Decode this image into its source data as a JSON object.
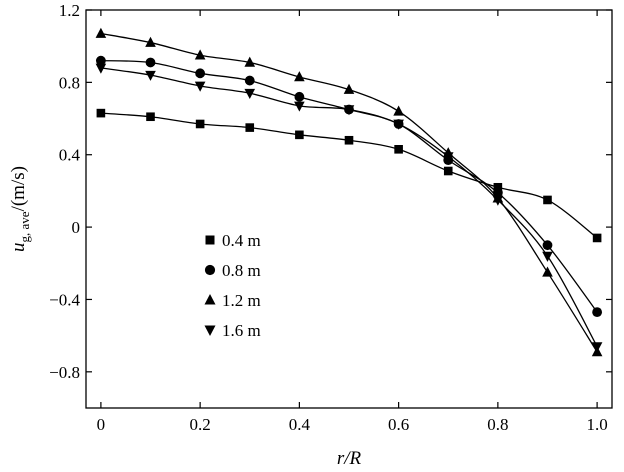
{
  "chart_data": {
    "type": "line",
    "xlabel": "r/R",
    "ylabel": {
      "var": "u",
      "sub": "g, ave",
      "unit": "/(m/s)"
    },
    "xlim": [
      -0.03,
      1.03
    ],
    "ylim": [
      -1.0,
      1.2
    ],
    "xticks": [
      0,
      0.2,
      0.4,
      0.6,
      0.8,
      1.0
    ],
    "xtick_labels": [
      "0",
      "0.2",
      "0.4",
      "0.6",
      "0.8",
      "1.0"
    ],
    "yticks": [
      -0.8,
      -0.4,
      0,
      0.4,
      0.8,
      1.2
    ],
    "ytick_labels": [
      "−0.8",
      "−0.4",
      "0",
      "0.4",
      "0.8",
      "1.2"
    ],
    "grid": false,
    "legend_position": "lower-left",
    "x": [
      0,
      0.1,
      0.2,
      0.3,
      0.4,
      0.5,
      0.6,
      0.7,
      0.8,
      0.9,
      1.0
    ],
    "series": [
      {
        "name": "0.4 m",
        "marker": "square",
        "values": [
          0.63,
          0.61,
          0.57,
          0.55,
          0.51,
          0.48,
          0.43,
          0.31,
          0.22,
          0.15,
          -0.06
        ]
      },
      {
        "name": "0.8 m",
        "marker": "circle",
        "values": [
          0.92,
          0.91,
          0.85,
          0.81,
          0.72,
          0.65,
          0.57,
          0.37,
          0.19,
          -0.1,
          -0.47
        ]
      },
      {
        "name": "1.2 m",
        "marker": "triangle-up",
        "values": [
          1.07,
          1.02,
          0.95,
          0.91,
          0.83,
          0.76,
          0.64,
          0.41,
          0.16,
          -0.25,
          -0.69
        ]
      },
      {
        "name": "1.6 m",
        "marker": "triangle-down",
        "values": [
          0.88,
          0.84,
          0.78,
          0.74,
          0.67,
          0.65,
          0.57,
          0.39,
          0.15,
          -0.16,
          -0.66
        ]
      }
    ]
  }
}
